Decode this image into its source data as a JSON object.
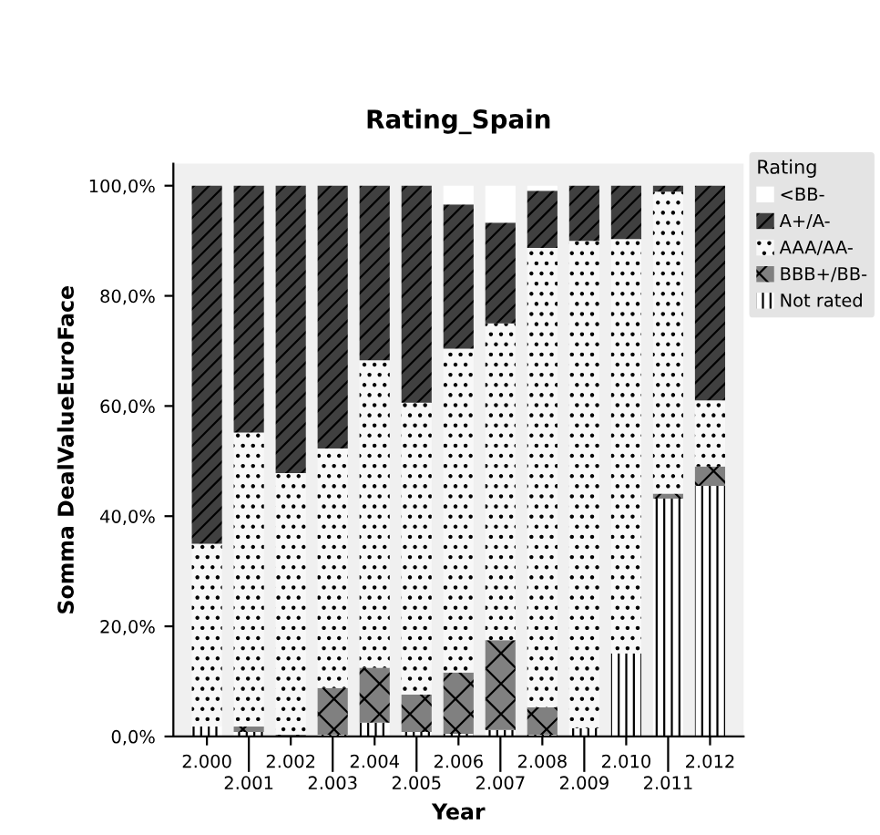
{
  "chart_data": {
    "type": "bar",
    "title": "Rating_Spain",
    "xlabel": "Year",
    "ylabel": "Somma DealValueEuroFace",
    "legend_title": "Rating",
    "stacked": true,
    "legend": "right",
    "grid": false,
    "categories": [
      "2.000",
      "2.001",
      "2.002",
      "2.003",
      "2.004",
      "2.005",
      "2.006",
      "2.007",
      "2.008",
      "2.009",
      "2.010",
      "2.011",
      "2.012"
    ],
    "ylim": [
      0,
      104
    ],
    "yticks": [
      {
        "value": 0,
        "label": "0,0%"
      },
      {
        "value": 20,
        "label": "20,0%"
      },
      {
        "value": 40,
        "label": "40,0%"
      },
      {
        "value": 60,
        "label": "60,0%"
      },
      {
        "value": 80,
        "label": "80,0%"
      },
      {
        "value": 100,
        "label": "100,0%"
      }
    ],
    "series": [
      {
        "name": "Not rated",
        "color": "#ffffff",
        "values": [
          1.8,
          0.8,
          0,
          0.3,
          2.5,
          0.8,
          0.5,
          1.2,
          0.3,
          1.5,
          15.1,
          43.2,
          45.5
        ]
      },
      {
        "name": "BBB+/BB-",
        "color": "#808080",
        "values": [
          0,
          1.0,
          0.3,
          8.5,
          10.0,
          6.8,
          11.1,
          16.3,
          5.0,
          0,
          0,
          0.9,
          3.5
        ]
      },
      {
        "name": "AAA/AA-",
        "color": "#f8f8f8",
        "values": [
          33.2,
          53.4,
          47.5,
          43.5,
          55.8,
          53.0,
          58.8,
          57.5,
          83.4,
          88.5,
          75.2,
          54.8,
          12.0
        ]
      },
      {
        "name": "A+/A-",
        "color": "#404040",
        "values": [
          65.0,
          44.8,
          52.2,
          47.7,
          31.7,
          39.4,
          26.2,
          18.3,
          10.4,
          10.0,
          9.7,
          1.1,
          39.0
        ]
      },
      {
        "name": "<BB-",
        "color": "#ffffff",
        "values": [
          0,
          0,
          0,
          0,
          0,
          0,
          3.4,
          6.7,
          0.9,
          0,
          0,
          0,
          0
        ]
      }
    ]
  }
}
